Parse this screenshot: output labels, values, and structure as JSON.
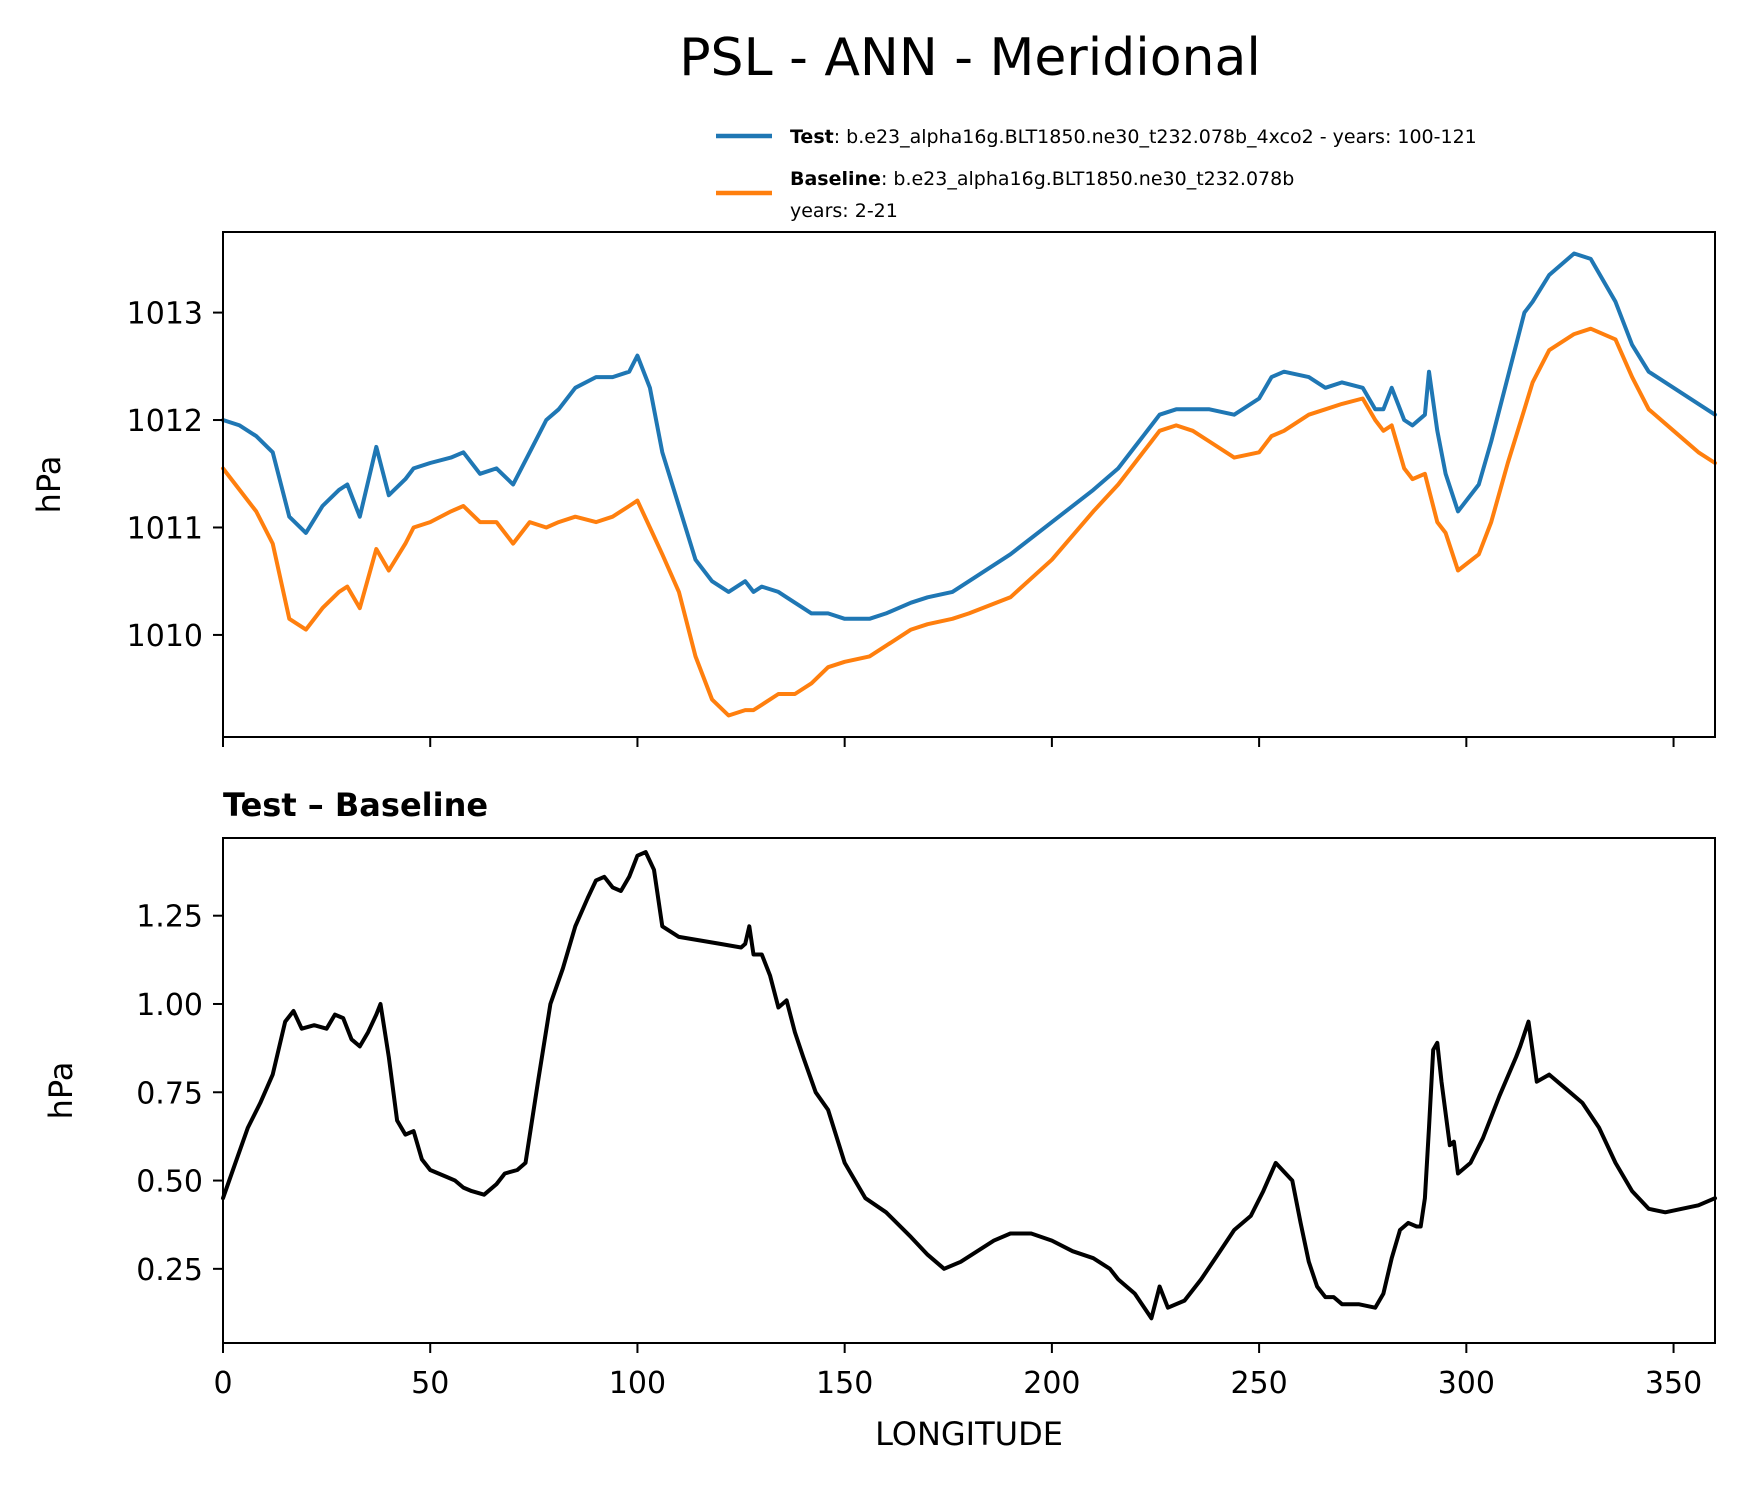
{
  "title": "PSL - ANN - Meridional",
  "colors": {
    "test": "#1f77b4",
    "baseline": "#ff7f0e",
    "diff": "#000000"
  },
  "legend": {
    "test_name": "Test",
    "test_text": ": b.e23_alpha16g.BLT1850.ne30_t232.078b_4xco2 - years: 100-121",
    "baseline_name": "Baseline",
    "baseline_text": ": b.e23_alpha16g.BLT1850.ne30_t232.078b",
    "baseline_text2": "years: 2-21"
  },
  "chart_data": [
    {
      "type": "line",
      "title": "",
      "xlabel": "",
      "ylabel": "hPa",
      "xlim": [
        0,
        360
      ],
      "ylim": [
        1009.05,
        1013.75
      ],
      "yticks": [
        1010,
        1011,
        1012,
        1013
      ],
      "xticks": [
        0,
        50,
        100,
        150,
        200,
        250,
        300,
        350
      ],
      "show_xtick_labels": false,
      "grid": false,
      "legend_position": "top-right",
      "series": [
        {
          "name": "Test",
          "color": "#1f77b4",
          "x": [
            0,
            4,
            8,
            12,
            16,
            20,
            24,
            28,
            30,
            33,
            37,
            40,
            44,
            46,
            50,
            55,
            58,
            62,
            66,
            70,
            74,
            78,
            81,
            85,
            90,
            94,
            98,
            100,
            103,
            106,
            110,
            114,
            118,
            122,
            126,
            128,
            130,
            134,
            136,
            138,
            142,
            146,
            150,
            156,
            160,
            166,
            170,
            176,
            180,
            190,
            200,
            210,
            216,
            220,
            224,
            226,
            230,
            234,
            238,
            244,
            250,
            253,
            256,
            262,
            266,
            270,
            275,
            278,
            280,
            282,
            285,
            287,
            290,
            291,
            293,
            295,
            298,
            303,
            306,
            310,
            314,
            316,
            320,
            326,
            330,
            336,
            340,
            344,
            350,
            356,
            360
          ],
          "values": [
            1012.0,
            1011.95,
            1011.85,
            1011.7,
            1011.1,
            1010.95,
            1011.2,
            1011.35,
            1011.4,
            1011.1,
            1011.75,
            1011.3,
            1011.45,
            1011.55,
            1011.6,
            1011.65,
            1011.7,
            1011.5,
            1011.55,
            1011.4,
            1011.7,
            1012.0,
            1012.1,
            1012.3,
            1012.4,
            1012.4,
            1012.45,
            1012.6,
            1012.3,
            1011.7,
            1011.2,
            1010.7,
            1010.5,
            1010.4,
            1010.5,
            1010.4,
            1010.45,
            1010.4,
            1010.35,
            1010.3,
            1010.2,
            1010.2,
            1010.15,
            1010.15,
            1010.2,
            1010.3,
            1010.35,
            1010.4,
            1010.5,
            1010.75,
            1011.05,
            1011.35,
            1011.55,
            1011.75,
            1011.95,
            1012.05,
            1012.1,
            1012.1,
            1012.1,
            1012.05,
            1012.2,
            1012.4,
            1012.45,
            1012.4,
            1012.3,
            1012.35,
            1012.3,
            1012.1,
            1012.1,
            1012.3,
            1012.0,
            1011.95,
            1012.05,
            1012.45,
            1011.9,
            1011.5,
            1011.15,
            1011.4,
            1011.8,
            1012.4,
            1013.0,
            1013.1,
            1013.35,
            1013.55,
            1013.5,
            1013.1,
            1012.7,
            1012.45,
            1012.3,
            1012.15,
            1012.05
          ]
        },
        {
          "name": "Baseline",
          "color": "#ff7f0e",
          "x": [
            0,
            4,
            8,
            12,
            16,
            20,
            24,
            28,
            30,
            33,
            37,
            40,
            44,
            46,
            50,
            55,
            58,
            62,
            66,
            70,
            74,
            78,
            81,
            85,
            90,
            94,
            98,
            100,
            103,
            106,
            110,
            114,
            118,
            122,
            126,
            128,
            130,
            134,
            136,
            138,
            142,
            146,
            150,
            156,
            160,
            166,
            170,
            176,
            180,
            190,
            200,
            210,
            216,
            220,
            224,
            226,
            230,
            234,
            238,
            244,
            250,
            253,
            256,
            262,
            266,
            270,
            275,
            278,
            280,
            282,
            285,
            287,
            290,
            291,
            293,
            295,
            298,
            303,
            306,
            310,
            314,
            316,
            320,
            326,
            330,
            336,
            340,
            344,
            350,
            356,
            360
          ],
          "values": [
            1011.55,
            1011.35,
            1011.15,
            1010.85,
            1010.15,
            1010.05,
            1010.25,
            1010.4,
            1010.45,
            1010.25,
            1010.8,
            1010.6,
            1010.85,
            1011.0,
            1011.05,
            1011.15,
            1011.2,
            1011.05,
            1011.05,
            1010.85,
            1011.05,
            1011.0,
            1011.05,
            1011.1,
            1011.05,
            1011.1,
            1011.2,
            1011.25,
            1011.0,
            1010.75,
            1010.4,
            1009.8,
            1009.4,
            1009.25,
            1009.3,
            1009.3,
            1009.35,
            1009.45,
            1009.45,
            1009.45,
            1009.55,
            1009.7,
            1009.75,
            1009.8,
            1009.9,
            1010.05,
            1010.1,
            1010.15,
            1010.2,
            1010.35,
            1010.7,
            1011.15,
            1011.4,
            1011.6,
            1011.8,
            1011.9,
            1011.95,
            1011.9,
            1011.8,
            1011.65,
            1011.7,
            1011.85,
            1011.9,
            1012.05,
            1012.1,
            1012.15,
            1012.2,
            1012.0,
            1011.9,
            1011.95,
            1011.55,
            1011.45,
            1011.5,
            1011.35,
            1011.05,
            1010.95,
            1010.6,
            1010.75,
            1011.05,
            1011.6,
            1012.1,
            1012.35,
            1012.65,
            1012.8,
            1012.85,
            1012.75,
            1012.4,
            1012.1,
            1011.9,
            1011.7,
            1011.6
          ]
        }
      ]
    },
    {
      "type": "line",
      "title": "Test – Baseline",
      "xlabel": "LONGITUDE",
      "ylabel": "hPa",
      "xlim": [
        0,
        360
      ],
      "ylim": [
        0.04,
        1.47
      ],
      "yticks": [
        0.25,
        0.5,
        0.75,
        1.0,
        1.25
      ],
      "ytick_labels": [
        "0.25",
        "0.50",
        "0.75",
        "1.00",
        "1.25"
      ],
      "xticks": [
        0,
        50,
        100,
        150,
        200,
        250,
        300,
        350
      ],
      "show_xtick_labels": true,
      "grid": false,
      "series": [
        {
          "name": "",
          "color": "#000000",
          "x": [
            0,
            3,
            6,
            9,
            12,
            15,
            17,
            19,
            22,
            25,
            27,
            29,
            31,
            33,
            35,
            37,
            38,
            40,
            42,
            44,
            46,
            48,
            50,
            52,
            54,
            56,
            58,
            60,
            63,
            66,
            68,
            71,
            73,
            76,
            79,
            82,
            85,
            88,
            90,
            92,
            94,
            96,
            98,
            100,
            102,
            104,
            106,
            110,
            115,
            120,
            125,
            126,
            127,
            128,
            130,
            132,
            134,
            136,
            138,
            140,
            143,
            146,
            150,
            155,
            160,
            166,
            170,
            174,
            178,
            182,
            186,
            190,
            195,
            200,
            205,
            210,
            214,
            216,
            220,
            224,
            226,
            228,
            232,
            236,
            240,
            244,
            248,
            251,
            254,
            258,
            260,
            262,
            264,
            266,
            268,
            270,
            274,
            278,
            280,
            282,
            284,
            286,
            288,
            289,
            290,
            291,
            292,
            293,
            294,
            296,
            297,
            298,
            301,
            304,
            308,
            312,
            313,
            315,
            317,
            320,
            324,
            328,
            332,
            336,
            340,
            344,
            348,
            352,
            356,
            360
          ],
          "values": [
            0.45,
            0.55,
            0.65,
            0.72,
            0.8,
            0.95,
            0.98,
            0.93,
            0.94,
            0.93,
            0.97,
            0.96,
            0.9,
            0.88,
            0.92,
            0.97,
            1.0,
            0.85,
            0.67,
            0.63,
            0.64,
            0.56,
            0.53,
            0.52,
            0.51,
            0.5,
            0.48,
            0.47,
            0.46,
            0.49,
            0.52,
            0.53,
            0.55,
            0.78,
            1.0,
            1.1,
            1.22,
            1.3,
            1.35,
            1.36,
            1.33,
            1.32,
            1.36,
            1.42,
            1.43,
            1.38,
            1.22,
            1.19,
            1.18,
            1.17,
            1.16,
            1.17,
            1.22,
            1.14,
            1.14,
            1.08,
            0.99,
            1.01,
            0.92,
            0.85,
            0.75,
            0.7,
            0.55,
            0.45,
            0.41,
            0.34,
            0.29,
            0.25,
            0.27,
            0.3,
            0.33,
            0.35,
            0.35,
            0.33,
            0.3,
            0.28,
            0.25,
            0.22,
            0.18,
            0.11,
            0.2,
            0.14,
            0.16,
            0.22,
            0.29,
            0.36,
            0.4,
            0.47,
            0.55,
            0.5,
            0.38,
            0.27,
            0.2,
            0.17,
            0.17,
            0.15,
            0.15,
            0.14,
            0.18,
            0.28,
            0.36,
            0.38,
            0.37,
            0.37,
            0.45,
            0.65,
            0.87,
            0.89,
            0.78,
            0.6,
            0.61,
            0.52,
            0.55,
            0.62,
            0.74,
            0.85,
            0.88,
            0.95,
            0.78,
            0.8,
            0.76,
            0.72,
            0.65,
            0.55,
            0.47,
            0.42,
            0.41,
            0.42,
            0.43,
            0.45
          ]
        }
      ]
    }
  ]
}
